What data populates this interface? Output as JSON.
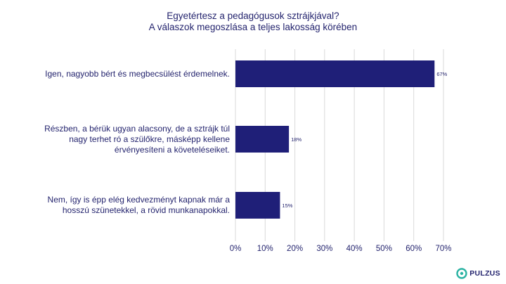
{
  "chart_data": {
    "type": "bar",
    "orientation": "horizontal",
    "title": "Egyetértesz a pedagógusok sztrájkjával?",
    "subtitle": "A válaszok megoszlása a teljes lakosság körében",
    "categories": [
      "Igen, nagyobb bért és megbecsülést érdemelnek.",
      "Részben, a bérük ugyan alacsony, de a sztrájk túl nagy terhet ró a szülőkre, másképp kellene érvényesíteni a követeléseiket.",
      "Nem, így is épp elég kedvezményt kapnak már a hosszú szünetekkel, a rövid munkanapokkal."
    ],
    "category_lines": [
      [
        "Igen, nagyobb bért és megbecsülést érdemelnek."
      ],
      [
        "Részben, a bérük ugyan alacsony, de a sztrájk túl",
        "nagy terhet ró a szülőkre, másképp kellene",
        "érvényesíteni a követeléseiket."
      ],
      [
        "Nem, így is épp elég kedvezményt kapnak már a",
        "hosszú szünetekkel, a rövid munkanapokkal."
      ]
    ],
    "values": [
      67,
      18,
      15
    ],
    "data_labels": [
      "67%",
      "18%",
      "15%"
    ],
    "xlim": [
      0,
      70
    ],
    "xticks": [
      "0%",
      "10%",
      "20%",
      "30%",
      "40%",
      "50%",
      "60%",
      "70%"
    ],
    "grid": true,
    "bar_color": "#1f1f78",
    "grid_color": "#d9d9d9",
    "text_color": "#24246e"
  },
  "logo": {
    "text": "PULZUS",
    "icon": "pulzus-logo-icon",
    "icon_color": "#2bb3a3"
  }
}
